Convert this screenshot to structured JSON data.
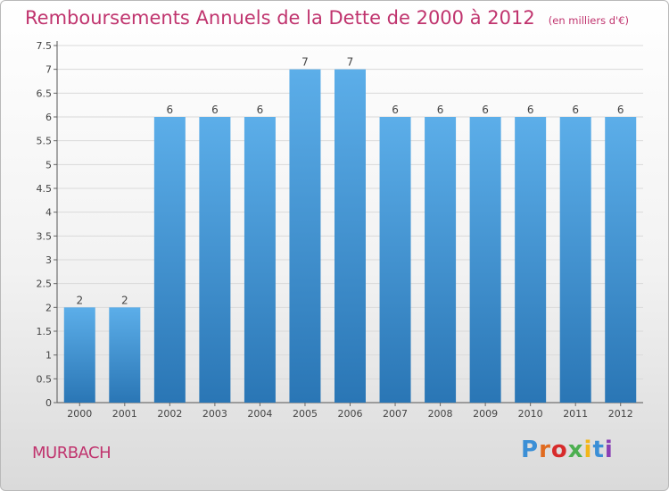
{
  "title": {
    "main": "Remboursements Annuels de la Dette de 2000 à 2012",
    "unit": "(en milliers d'€)"
  },
  "commune": "MURBACH",
  "logo": {
    "text": "Proxiti",
    "letter_colors": [
      "#3b8fd6",
      "#e06a1f",
      "#d72b2b",
      "#4caf50",
      "#f2b619",
      "#3b8fd6",
      "#8a3fb5"
    ]
  },
  "colors": {
    "accent": "#c0346e",
    "bar_top": "#5caee9",
    "bar_bottom": "#2a76b5"
  },
  "chart_data": {
    "type": "bar",
    "categories": [
      "2000",
      "2001",
      "2002",
      "2003",
      "2004",
      "2005",
      "2006",
      "2007",
      "2008",
      "2009",
      "2010",
      "2011",
      "2012"
    ],
    "values": [
      2,
      2,
      6,
      6,
      6,
      7,
      7,
      6,
      6,
      6,
      6,
      6,
      6
    ],
    "data_labels": [
      "2",
      "2",
      "6",
      "6",
      "6",
      "7",
      "7",
      "6",
      "6",
      "6",
      "6",
      "6",
      "6"
    ],
    "y_ticks": [
      "0",
      "0.5",
      "1",
      "1.5",
      "2",
      "2.5",
      "3",
      "3.5",
      "4",
      "4.5",
      "5",
      "5.5",
      "6",
      "6.5",
      "7",
      "7.5"
    ],
    "ylim": [
      0,
      7.5
    ],
    "grid": true,
    "xlabel": "",
    "ylabel": ""
  }
}
